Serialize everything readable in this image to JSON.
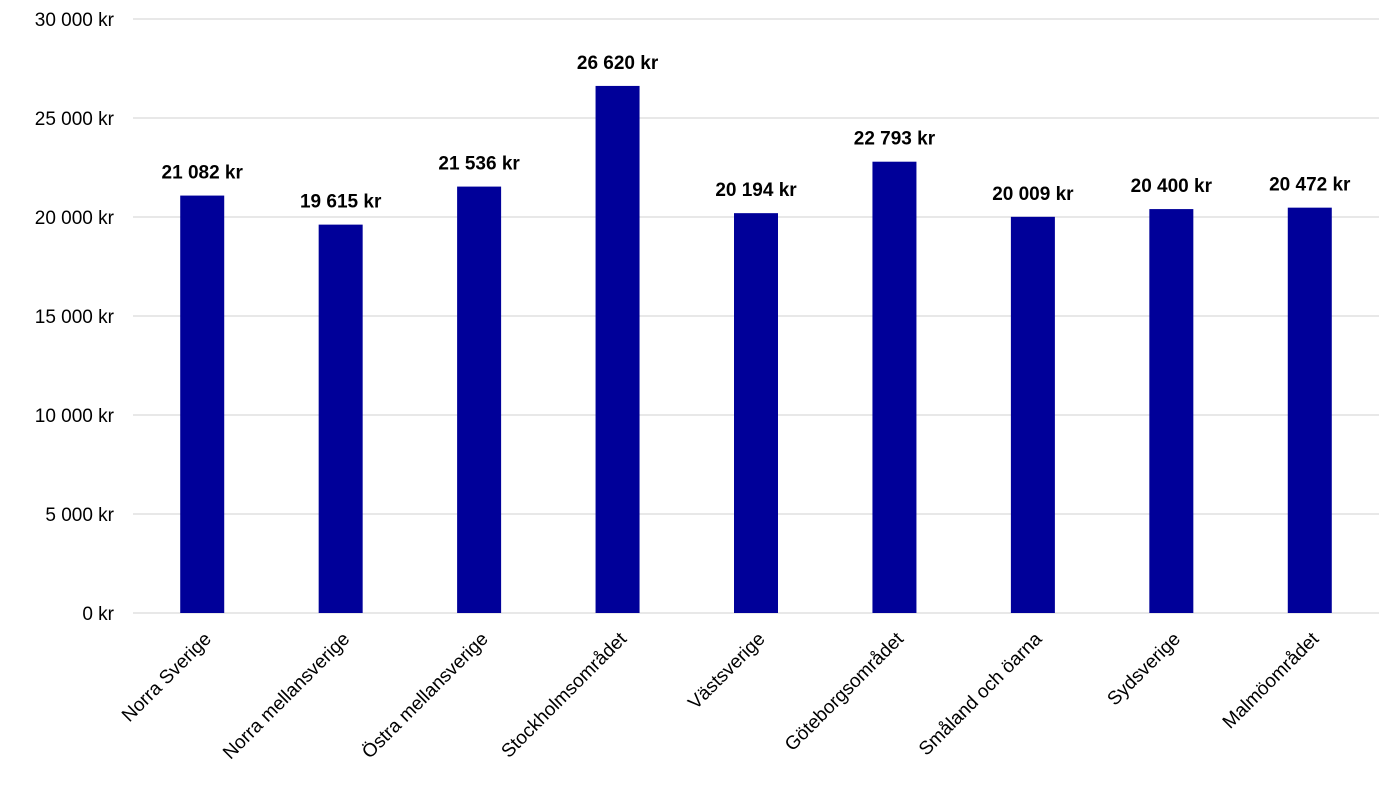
{
  "chart_data": {
    "type": "bar",
    "categories": [
      "Norra Sverige",
      "Norra mellansverige",
      "Östra mellansverige",
      "Stockholmsområdet",
      "Västsverige",
      "Göteborgsområdet",
      "Småland och öarna",
      "Sydsverige",
      "Malmöområdet"
    ],
    "values": [
      21082,
      19615,
      21536,
      26620,
      20194,
      22793,
      20009,
      20400,
      20472
    ],
    "data_labels": [
      "21 082 kr",
      "19 615 kr",
      "21 536 kr",
      "26 620 kr",
      "20 194 kr",
      "22 793 kr",
      "20 009 kr",
      "20 400 kr",
      "20 472 kr"
    ],
    "y_ticks": [
      0,
      5000,
      10000,
      15000,
      20000,
      25000,
      30000
    ],
    "y_tick_labels": [
      "0 kr",
      "5 000 kr",
      "10 000 kr",
      "15 000 kr",
      "20 000 kr",
      "25 000 kr",
      "30 000 kr"
    ],
    "ylim": [
      0,
      30000
    ],
    "grid": true,
    "bar_color": "#000099",
    "title": "",
    "xlabel": "",
    "ylabel": ""
  }
}
